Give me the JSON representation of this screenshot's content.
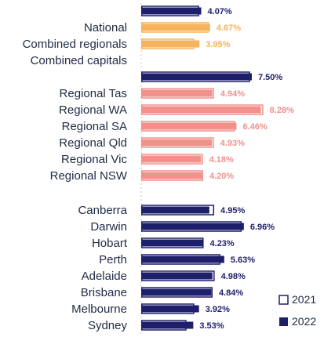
{
  "chart_data": {
    "type": "bar",
    "orientation": "horizontal",
    "grid": false,
    "legend_position": "bottom-right",
    "series": [
      {
        "name": "2021",
        "style": "outline"
      },
      {
        "name": "2022",
        "style": "filled"
      }
    ],
    "groups": [
      {
        "color": "#1e1f6b",
        "rows": [
          {
            "label": "",
            "v2021": 3.93,
            "v2022": 4.07,
            "value_label": "4.07%"
          }
        ]
      },
      {
        "color": "#f7b25e",
        "rows": [
          {
            "label": "National",
            "v2021": 4.58,
            "v2022": 4.67,
            "value_label": "4.67%"
          },
          {
            "label": "Combined regionals",
            "v2021": 3.6,
            "v2022": 3.95,
            "value_label": "3.95%"
          },
          {
            "label": "Combined capitals",
            "v2021": null,
            "v2022": null,
            "value_label": ""
          }
        ]
      },
      {
        "color": "#1e1f6b",
        "rows": [
          {
            "label": "",
            "v2021": 7.38,
            "v2022": 7.5,
            "value_label": "7.50%"
          }
        ]
      },
      {
        "color": "#f0918c",
        "rows": [
          {
            "label": "Regional Tas",
            "v2021": 4.94,
            "v2022": 4.82,
            "value_label": "4.94%"
          },
          {
            "label": "Regional WA",
            "v2021": 8.28,
            "v2022": 8.12,
            "value_label": "8.28%"
          },
          {
            "label": "Regional SA",
            "v2021": 6.35,
            "v2022": 6.46,
            "value_label": "6.46%"
          },
          {
            "label": "Regional Qld",
            "v2021": 4.93,
            "v2022": 4.8,
            "value_label": "4.93%"
          },
          {
            "label": "Regional Vic",
            "v2021": 4.18,
            "v2022": 4.06,
            "value_label": "4.18%"
          },
          {
            "label": "Regional NSW",
            "v2021": 4.2,
            "v2022": 4.12,
            "value_label": "4.20%"
          }
        ]
      },
      {
        "color": "#1e1f6b",
        "rows": [
          {
            "label": "Canberra",
            "v2021": 4.95,
            "v2022": 4.62,
            "value_label": "4.95%"
          },
          {
            "label": "Darwin",
            "v2021": 6.81,
            "v2022": 6.96,
            "value_label": "6.96%"
          },
          {
            "label": "Hobart",
            "v2021": 4.23,
            "v2022": 4.23,
            "value_label": "4.23%"
          },
          {
            "label": "Perth",
            "v2021": 5.37,
            "v2022": 5.63,
            "value_label": "5.63%"
          },
          {
            "label": "Adelaide",
            "v2021": 4.98,
            "v2022": 4.83,
            "value_label": "4.98%"
          },
          {
            "label": "Brisbane",
            "v2021": 4.84,
            "v2022": 4.75,
            "value_label": "4.84%"
          },
          {
            "label": "Melbourne",
            "v2021": 3.6,
            "v2022": 3.92,
            "value_label": "3.92%"
          },
          {
            "label": "Sydney",
            "v2021": 3.07,
            "v2022": 3.53,
            "value_label": "3.53%"
          }
        ]
      }
    ]
  }
}
